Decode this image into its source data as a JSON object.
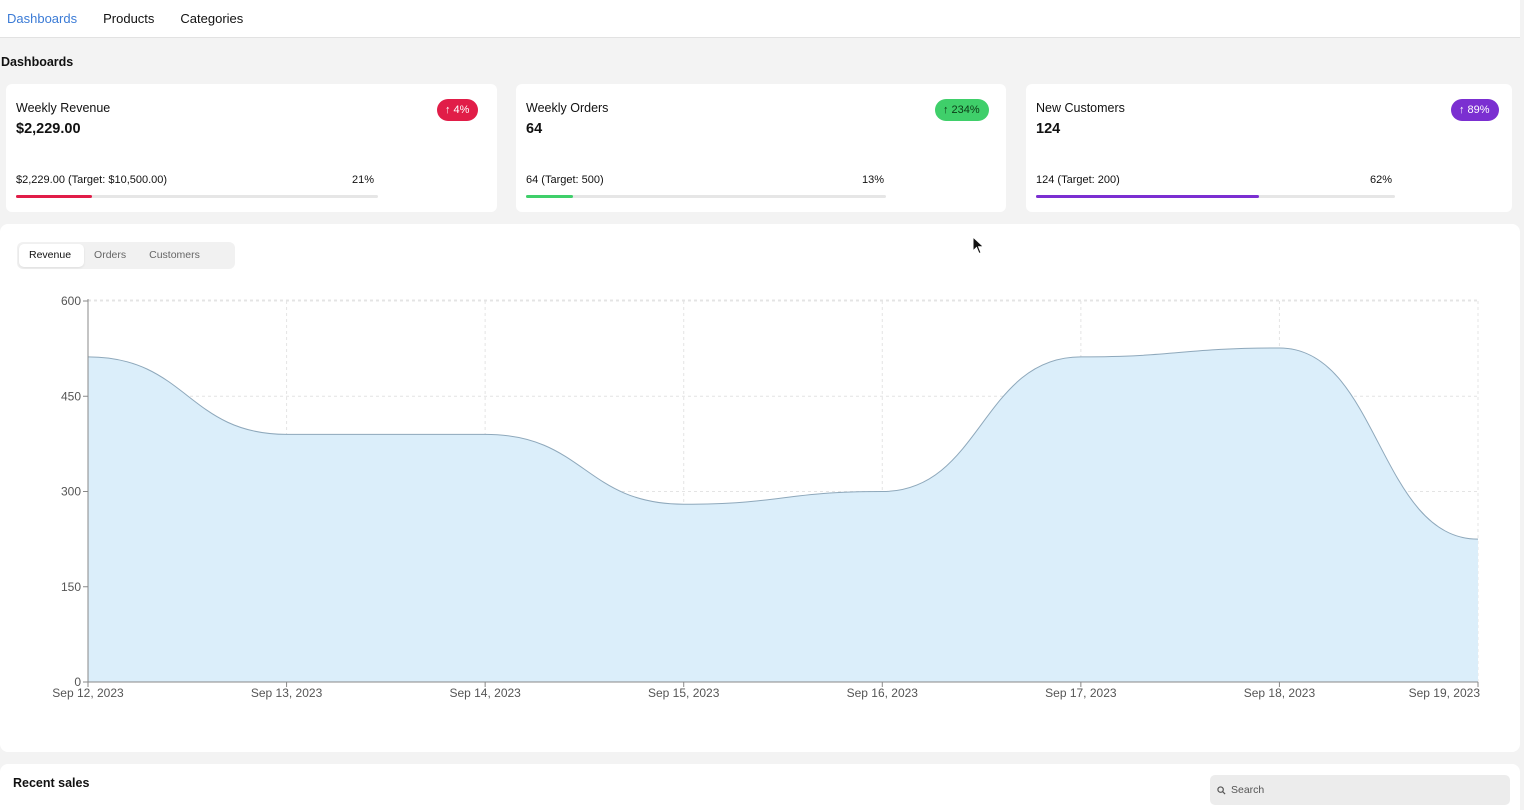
{
  "nav": {
    "items": [
      {
        "label": "Dashboards",
        "active": true
      },
      {
        "label": "Products",
        "active": false
      },
      {
        "label": "Categories",
        "active": false
      }
    ]
  },
  "page": {
    "heading": "Dashboards"
  },
  "cards": [
    {
      "title": "Weekly Revenue",
      "value": "$2,229.00",
      "badge": "↑ 4%",
      "badge_color": "#e11d48",
      "target_text": "$2,229.00 (Target: $10,500.00)",
      "percent_text": "21%",
      "progress": 0.21,
      "bar_color": "#e11d48"
    },
    {
      "title": "Weekly Orders",
      "value": "64",
      "badge": "↑ 234%",
      "badge_color": "#3fcf6a",
      "target_text": "64 (Target: 500)",
      "percent_text": "13%",
      "progress": 0.13,
      "bar_color": "#3fcf6a"
    },
    {
      "title": "New Customers",
      "value": "124",
      "badge": "↑ 89%",
      "badge_color": "#7b2fd1",
      "target_text": "124 (Target: 200)",
      "percent_text": "62%",
      "progress": 0.62,
      "bar_color": "#7b2fd1"
    }
  ],
  "tabs": [
    {
      "label": "Revenue",
      "active": true
    },
    {
      "label": "Orders",
      "active": false
    },
    {
      "label": "Customers",
      "active": false
    }
  ],
  "chart_data": {
    "type": "area",
    "categories": [
      "Sep 12, 2023",
      "Sep 13, 2023",
      "Sep 14, 2023",
      "Sep 15, 2023",
      "Sep 16, 2023",
      "Sep 17, 2023",
      "Sep 18, 2023",
      "Sep 19, 2023"
    ],
    "series": [
      {
        "values": [
          512,
          390,
          390,
          280,
          300,
          512,
          526,
          225
        ]
      }
    ],
    "yticks": [
      0,
      150,
      300,
      450,
      600
    ],
    "ylim": [
      0,
      600
    ],
    "grid": true,
    "fill_color": "#dbeefa",
    "line_color": "#8ea8bb"
  },
  "sales": {
    "title": "Recent sales",
    "search_placeholder": "Search"
  }
}
